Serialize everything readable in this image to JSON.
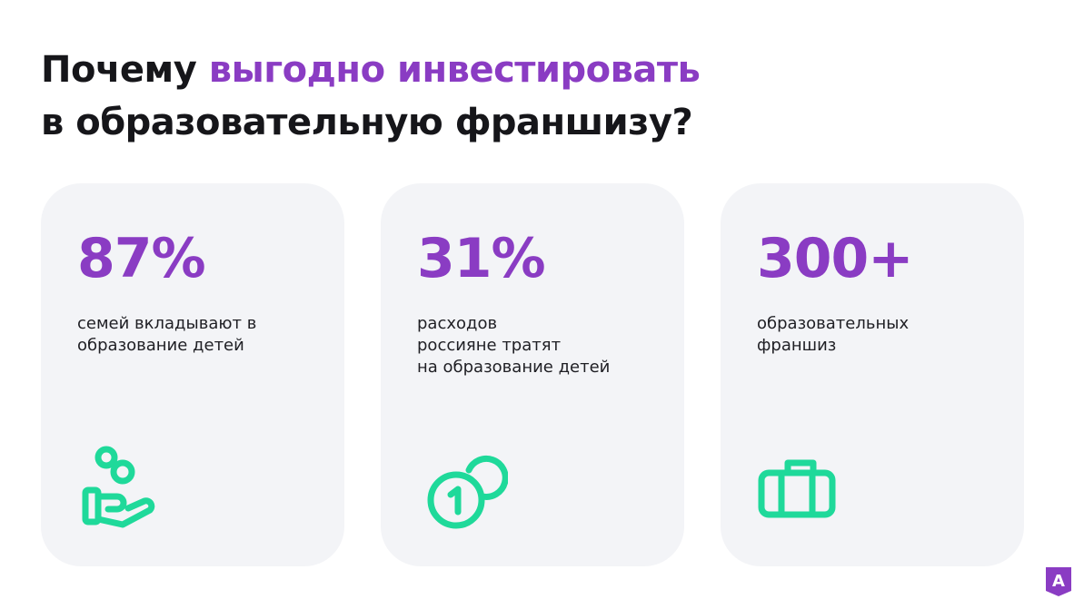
{
  "headline": {
    "line1_start": "Почему",
    "line1_accent": "выгодно инвестировать",
    "line2": "в образовательную франшизу?"
  },
  "cards": [
    {
      "value": "87%",
      "description": [
        "семей вкладывают в",
        "образование детей"
      ],
      "icon": "hand-with-coins-icon"
    },
    {
      "value": "31%",
      "description": [
        "расходов",
        "россияне тратят",
        "на образование детей"
      ],
      "icon": "coins-icon"
    },
    {
      "value": "300+",
      "description": [
        "образовательных",
        "франшиз"
      ],
      "icon": "briefcase-icon"
    }
  ],
  "logo": {
    "letter": "A",
    "icon": "brand-logo-icon"
  },
  "colors": {
    "accent": "#8a3cc3",
    "icon": "#1fd99a",
    "card_background": "#f3f4f7",
    "text": "#16161a"
  }
}
